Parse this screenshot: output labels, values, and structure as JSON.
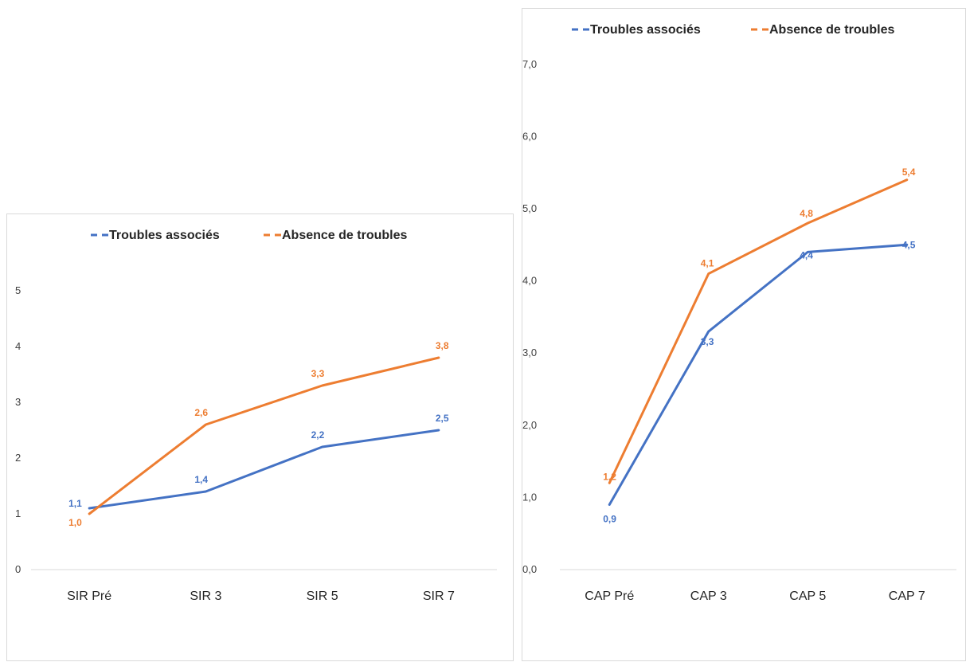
{
  "colors": {
    "series_1": "#4472c4",
    "series_2": "#ed7d31",
    "axis": "#d9d9d9"
  },
  "chart_data": [
    {
      "type": "line",
      "title": "",
      "xlabel": "",
      "ylabel": "",
      "categories": [
        "SIR Pré",
        "SIR 3",
        "SIR 5",
        "SIR 7"
      ],
      "ylim": [
        0,
        5
      ],
      "yticks": [
        "0",
        "1",
        "2",
        "3",
        "4",
        "5"
      ],
      "legend_position": "top",
      "grid": false,
      "series": [
        {
          "name": "Troubles associés",
          "values": [
            1.1,
            1.4,
            2.2,
            2.5
          ],
          "labels": [
            "1,1",
            "1,4",
            "2,2",
            "2,5"
          ],
          "color": "#4472c4"
        },
        {
          "name": "Absence de troubles",
          "values": [
            1.0,
            2.6,
            3.3,
            3.8
          ],
          "labels": [
            "1,0",
            "2,6",
            "3,3",
            "3,8"
          ],
          "color": "#ed7d31"
        }
      ]
    },
    {
      "type": "line",
      "title": "",
      "xlabel": "",
      "ylabel": "",
      "categories": [
        "CAP Pré",
        "CAP 3",
        "CAP 5",
        "CAP 7"
      ],
      "ylim": [
        0,
        7
      ],
      "yticks": [
        "0,0",
        "1,0",
        "2,0",
        "3,0",
        "4,0",
        "5,0",
        "6,0",
        "7,0"
      ],
      "legend_position": "top",
      "grid": false,
      "series": [
        {
          "name": "Troubles associés",
          "values": [
            0.9,
            3.3,
            4.4,
            4.5
          ],
          "labels": [
            "0,9",
            "3,3",
            "4,4",
            "4,5"
          ],
          "color": "#4472c4"
        },
        {
          "name": "Absence de troubles",
          "values": [
            1.2,
            4.1,
            4.8,
            5.4
          ],
          "labels": [
            "1,2",
            "4,1",
            "4,8",
            "5,4"
          ],
          "color": "#ed7d31"
        }
      ]
    }
  ]
}
